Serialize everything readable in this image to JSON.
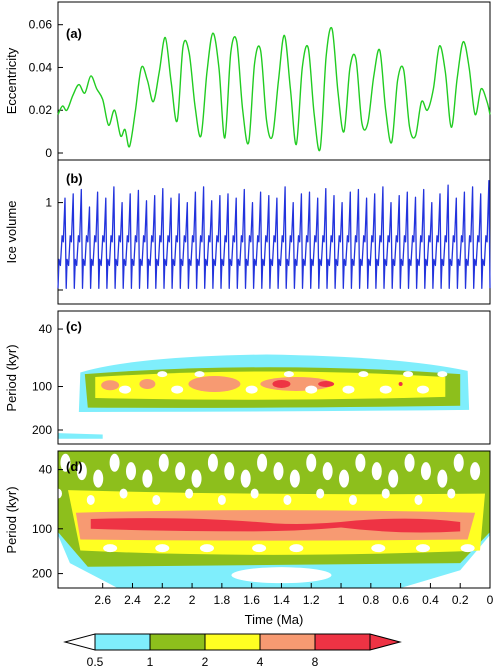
{
  "colors": {
    "eccentricity": "#22cc22",
    "ice": "#2233dd",
    "scale": [
      "#ffffff",
      "#7feefc",
      "#8dbf1c",
      "#ffff22",
      "#f79a72",
      "#ee3344"
    ]
  },
  "chart_data": [
    {
      "id": "a",
      "type": "line",
      "panel_label": "(a)",
      "ylabel": "Eccentricity",
      "x_range": [
        2.9,
        0
      ],
      "ylim": [
        0,
        0.065
      ],
      "yticks": [
        "0",
        "0.02",
        "0.04",
        "0.06"
      ],
      "ytick_values": [
        0,
        0.02,
        0.04,
        0.06
      ],
      "series": [
        {
          "x": [
            2.9,
            2.87,
            2.84,
            2.8,
            2.76,
            2.72,
            2.68,
            2.64,
            2.6,
            2.56,
            2.52,
            2.48,
            2.45,
            2.42,
            2.38,
            2.34,
            2.3,
            2.26,
            2.22,
            2.18,
            2.14,
            2.1,
            2.06,
            2.02,
            1.98,
            1.94,
            1.9,
            1.86,
            1.82,
            1.78,
            1.74,
            1.7,
            1.66,
            1.62,
            1.58,
            1.54,
            1.5,
            1.46,
            1.42,
            1.38,
            1.34,
            1.3,
            1.26,
            1.22,
            1.18,
            1.14,
            1.1,
            1.06,
            1.02,
            0.98,
            0.94,
            0.9,
            0.86,
            0.82,
            0.78,
            0.74,
            0.7,
            0.66,
            0.62,
            0.58,
            0.54,
            0.5,
            0.46,
            0.42,
            0.38,
            0.34,
            0.3,
            0.26,
            0.22,
            0.18,
            0.14,
            0.1,
            0.06,
            0.02,
            0.0
          ],
          "values": [
            0.018,
            0.022,
            0.02,
            0.027,
            0.032,
            0.028,
            0.036,
            0.03,
            0.025,
            0.013,
            0.02,
            0.008,
            0.011,
            0.003,
            0.02,
            0.04,
            0.034,
            0.024,
            0.038,
            0.054,
            0.033,
            0.015,
            0.05,
            0.047,
            0.022,
            0.008,
            0.038,
            0.056,
            0.04,
            0.007,
            0.047,
            0.052,
            0.02,
            0.005,
            0.042,
            0.048,
            0.015,
            0.008,
            0.034,
            0.055,
            0.03,
            0.004,
            0.04,
            0.049,
            0.018,
            0.002,
            0.045,
            0.058,
            0.028,
            0.01,
            0.04,
            0.044,
            0.014,
            0.014,
            0.036,
            0.048,
            0.02,
            0.005,
            0.034,
            0.039,
            0.012,
            0.008,
            0.024,
            0.02,
            0.03,
            0.05,
            0.038,
            0.012,
            0.035,
            0.052,
            0.04,
            0.018,
            0.03,
            0.024,
            0.018
          ]
        }
      ]
    },
    {
      "id": "b",
      "type": "line",
      "panel_label": "(b)",
      "ylabel": "Ice volume",
      "x_range": [
        2.9,
        0
      ],
      "ylim": [
        0,
        1.35
      ],
      "yticks": [
        "1"
      ],
      "ytick_values": [
        1
      ],
      "series": [
        {
          "glacial_cycles": 53,
          "note_values": "sawtooth cycles with slow build-up and rapid termination",
          "x_start": 2.9,
          "x_end": 0,
          "min": 0.02,
          "max_values": [
            1.05,
            1.1,
            1.15,
            0.95,
            1.12,
            1.05,
            1.18,
            1.0,
            1.1,
            1.14,
            1.02,
            1.08,
            1.16,
            1.05,
            1.1,
            1.0,
            1.12,
            1.18,
            1.02,
            1.08,
            1.1,
            1.05,
            1.15,
            1.0,
            1.12,
            1.08,
            1.05,
            1.18,
            1.0,
            1.1,
            1.12,
            1.05,
            1.16,
            1.08,
            1.0,
            1.12,
            1.15,
            1.05,
            1.1,
            1.18,
            1.0,
            1.08,
            1.12,
            1.06,
            1.15,
            1.0,
            1.1,
            1.2,
            1.05,
            1.12,
            1.18,
            1.1,
            1.25
          ]
        }
      ]
    },
    {
      "id": "c",
      "type": "heatmap",
      "panel_label": "(c)",
      "ylabel": "Period (kyr)",
      "x_range": [
        2.9,
        0
      ],
      "y_range_log": [
        30,
        250
      ],
      "yticks": [
        "40",
        "100",
        "200"
      ],
      "ytick_values": [
        40,
        100,
        200
      ]
    },
    {
      "id": "d",
      "type": "heatmap",
      "panel_label": "(d)",
      "ylabel": "Period (kyr)",
      "x_range": [
        2.9,
        0
      ],
      "y_range_log": [
        30,
        250
      ],
      "yticks": [
        "40",
        "100",
        "200"
      ],
      "ytick_values": [
        40,
        100,
        200
      ]
    }
  ],
  "xaxis": {
    "label": "Time (Ma)",
    "ticks": [
      "2.6",
      "2.4",
      "2.2",
      "2",
      "1.8",
      "1.6",
      "1.4",
      "1.2",
      "1",
      "0.8",
      "0.6",
      "0.4",
      "0.2",
      "0"
    ],
    "tick_values": [
      2.6,
      2.4,
      2.2,
      2.0,
      1.8,
      1.6,
      1.4,
      1.2,
      1.0,
      0.8,
      0.6,
      0.4,
      0.2,
      0.0
    ]
  },
  "colorbar": {
    "labels": [
      "0.5",
      "1",
      "2",
      "4",
      "8"
    ],
    "bounds": [
      0.5,
      1,
      2,
      4,
      8
    ]
  }
}
